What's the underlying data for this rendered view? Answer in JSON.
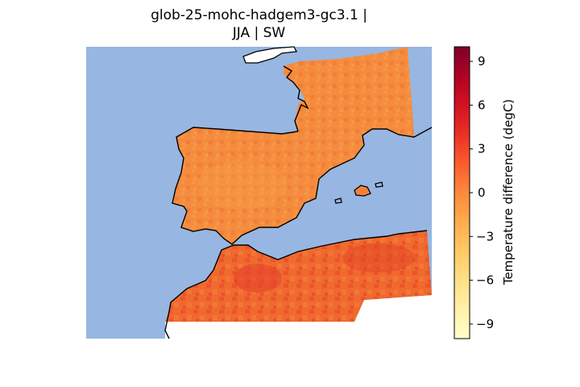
{
  "title": {
    "line1": "glob-25-mohc-hadgem3-gc3.1 |",
    "line2": "JJA | SW"
  },
  "colorbar": {
    "label": "Temperature difference (degC)",
    "min": -10,
    "max": 10,
    "ticks": [
      "9",
      "6",
      "3",
      "0",
      "−3",
      "−6",
      "−9"
    ],
    "colormap": [
      "#ffffcc",
      "#fff1a9",
      "#fee087",
      "#fec965",
      "#feab4b",
      "#fd893c",
      "#fa5c2e",
      "#ec3023",
      "#d31121",
      "#af0225",
      "#800026"
    ]
  },
  "map": {
    "ocean_color": "#97b6e1",
    "region": "Iberian Peninsula, southern France, north-west Africa"
  }
}
